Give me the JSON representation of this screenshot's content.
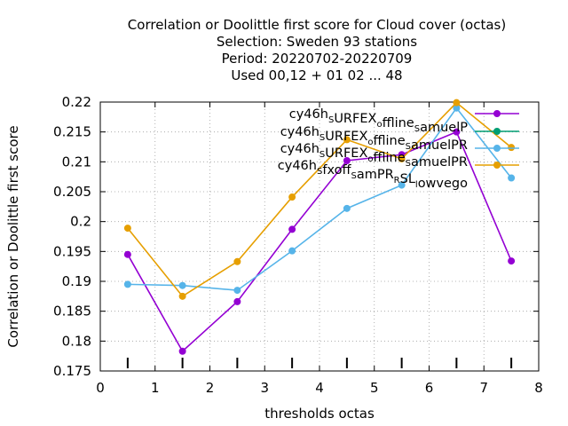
{
  "chart_data": {
    "type": "line",
    "title_lines": [
      "Correlation or Doolittle first score  for Cloud cover (octas)",
      "Selection: Sweden     93 stations",
      "Period: 20220702-20220709",
      "Used  00,12  + 01 02 ... 48"
    ],
    "xlabel": "thresholds octas",
    "ylabel": "Correlation or Doolittle first score",
    "xlim": [
      0,
      8
    ],
    "ylim": [
      0.175,
      0.22
    ],
    "x_ticks": [
      "0",
      "1",
      "2",
      "3",
      "4",
      "5",
      "6",
      "7",
      "8"
    ],
    "y_ticks": [
      "0.175",
      "0.18",
      "0.185",
      "0.19",
      "0.195",
      "0.2",
      "0.205",
      "0.21",
      "0.215",
      "0.22"
    ],
    "grid": true,
    "legend_position": "top-right",
    "series": [
      {
        "name": "cy46h_SURFEX_offline_samuelP",
        "color": "#9400d3",
        "x": [
          0.5,
          1.5,
          2.5,
          3.5,
          4.5,
          5.5,
          6.5,
          7.5
        ],
        "values": [
          0.1945,
          0.1783,
          0.1866,
          0.1987,
          0.2102,
          0.2112,
          0.215,
          0.1934
        ]
      },
      {
        "name": "cy46h_SURFEX_offline_samuelPR",
        "color": "#009e73",
        "x": [],
        "values": []
      },
      {
        "name": "cy46h_SURFEX_offline_samuelPR",
        "color": "#56b4e9",
        "x": [
          0.5,
          1.5,
          2.5,
          3.5,
          4.5,
          5.5,
          6.5,
          7.5
        ],
        "values": [
          0.1895,
          0.1893,
          0.1885,
          0.1951,
          0.2022,
          0.2061,
          0.219,
          0.2073
        ]
      },
      {
        "name": "cy46h_sfxoff_samPR_RSL_lowvego",
        "color": "#e69f00",
        "x": [
          0.5,
          1.5,
          2.5,
          3.5,
          4.5,
          5.5,
          6.5,
          7.5
        ],
        "values": [
          0.1989,
          0.1875,
          0.1933,
          0.2041,
          0.2137,
          0.2105,
          0.2199,
          0.2124
        ]
      }
    ],
    "legend_labels_rich": [
      [
        [
          "cy46h",
          ""
        ],
        [
          "S",
          "sub"
        ],
        [
          "URFEX",
          ""
        ],
        [
          "o",
          "sub"
        ],
        [
          "ffline",
          ""
        ],
        [
          "S",
          "sub"
        ],
        [
          "amuelP",
          ""
        ]
      ],
      [
        [
          "cy46h",
          ""
        ],
        [
          "S",
          "sub"
        ],
        [
          "URFEX",
          ""
        ],
        [
          "o",
          "sub"
        ],
        [
          "ffline",
          ""
        ],
        [
          "S",
          "sub"
        ],
        [
          "amuelPR",
          ""
        ]
      ],
      [
        [
          "cy46h",
          ""
        ],
        [
          "S",
          "sub"
        ],
        [
          "URFEX",
          ""
        ],
        [
          "o",
          "sub"
        ],
        [
          "ffline",
          ""
        ],
        [
          "S",
          "sub"
        ],
        [
          "amuelPR",
          ""
        ]
      ],
      [
        [
          "cy46h",
          ""
        ],
        [
          "S",
          "sub"
        ],
        [
          "fxoff",
          ""
        ],
        [
          "S",
          "sub"
        ],
        [
          "amPR",
          ""
        ],
        [
          "R",
          "sub"
        ],
        [
          "SL",
          ""
        ],
        [
          "l",
          "sub"
        ],
        [
          "owvego",
          ""
        ]
      ]
    ],
    "bottom_marks_x": [
      0.5,
      1.5,
      2.5,
      3.5,
      4.5,
      5.5,
      6.5,
      7.5
    ]
  }
}
